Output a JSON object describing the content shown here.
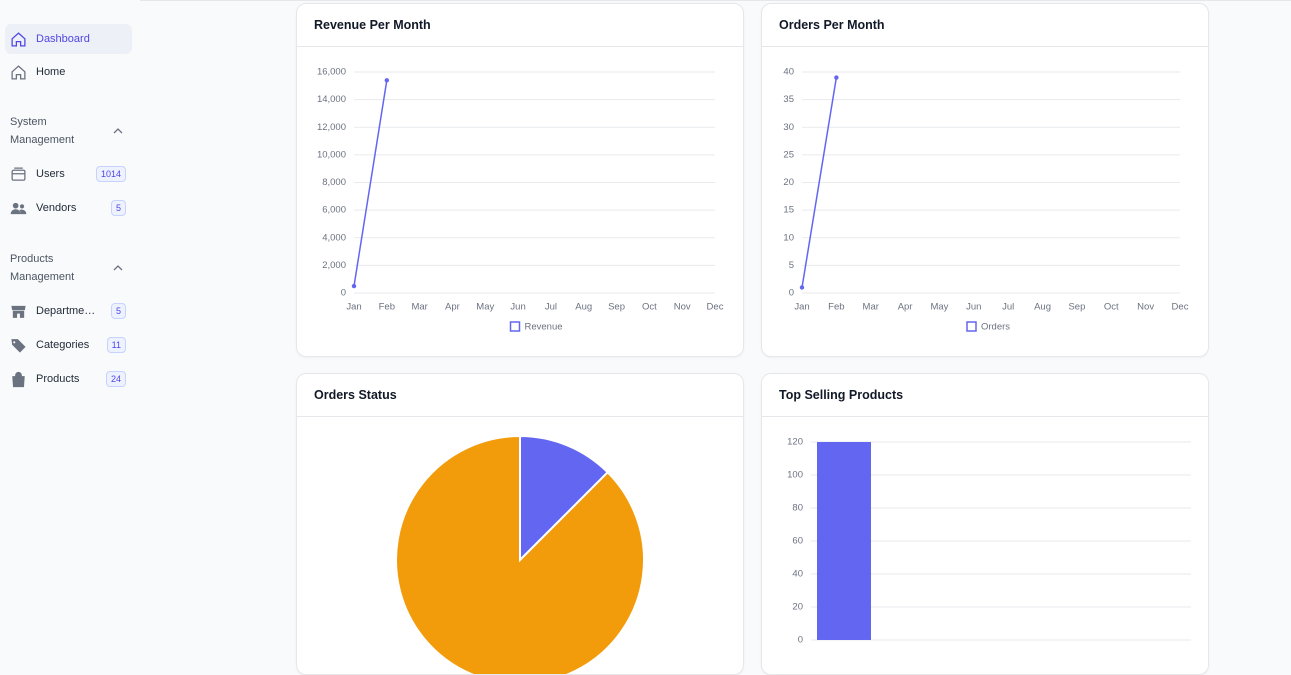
{
  "sidebar": {
    "items": [
      {
        "label": "Dashboard"
      },
      {
        "label": "Home"
      }
    ],
    "sections": [
      {
        "title": "System Management",
        "items": [
          {
            "label": "Users",
            "badge": 1014
          },
          {
            "label": "Vendors",
            "badge": 5
          }
        ]
      },
      {
        "title": "Products Management",
        "items": [
          {
            "label": "Departments",
            "badge": 5
          },
          {
            "label": "Categories",
            "badge": 11
          },
          {
            "label": "Products",
            "badge": 24
          }
        ]
      }
    ]
  },
  "chart_data": [
    {
      "type": "line",
      "title": "Revenue Per Month",
      "categories": [
        "Jan",
        "Feb",
        "Mar",
        "Apr",
        "May",
        "Jun",
        "Jul",
        "Aug",
        "Sep",
        "Oct",
        "Nov",
        "Dec"
      ],
      "series": [
        {
          "name": "Revenue",
          "color": "#6366f1",
          "values": [
            500,
            15400,
            null,
            null,
            null,
            null,
            null,
            null,
            null,
            null,
            null,
            null
          ]
        }
      ],
      "ylim": [
        0,
        16000
      ],
      "yticks": [
        0,
        {
          "value": 2000,
          "label": "2,000"
        },
        {
          "value": 4000,
          "label": "4,000"
        },
        {
          "value": 6000,
          "label": "6,000"
        },
        {
          "value": 8000,
          "label": "8,000"
        },
        {
          "value": 10000,
          "label": "10,000"
        },
        {
          "value": 12000,
          "label": "12,000"
        },
        {
          "value": 14000,
          "label": "14,000"
        },
        {
          "value": 16000,
          "label": "16,000"
        }
      ],
      "grid": true
    },
    {
      "type": "line",
      "title": "Orders Per Month",
      "categories": [
        "Jan",
        "Feb",
        "Mar",
        "Apr",
        "May",
        "Jun",
        "Jul",
        "Aug",
        "Sep",
        "Oct",
        "Nov",
        "Dec"
      ],
      "series": [
        {
          "name": "Orders",
          "color": "#6366f1",
          "values": [
            1,
            39,
            null,
            null,
            null,
            null,
            null,
            null,
            null,
            null,
            null,
            null
          ]
        }
      ],
      "ylim": [
        0,
        40
      ],
      "yticks": [
        0,
        5,
        10,
        15,
        20,
        25,
        30,
        35,
        40
      ],
      "grid": true
    },
    {
      "type": "pie",
      "title": "Orders Status",
      "categories": [
        null,
        null
      ],
      "values": [
        12.5,
        87.5
      ],
      "colors": [
        "#6366f1",
        "#f39c0b"
      ]
    },
    {
      "type": "bar",
      "title": "Top Selling Products",
      "categories": [
        null
      ],
      "values": [
        120
      ],
      "color": "#6366f1",
      "ylim": [
        0,
        120
      ],
      "yticks": [
        0,
        20,
        40,
        60,
        80,
        100,
        120
      ],
      "grid": true
    }
  ]
}
